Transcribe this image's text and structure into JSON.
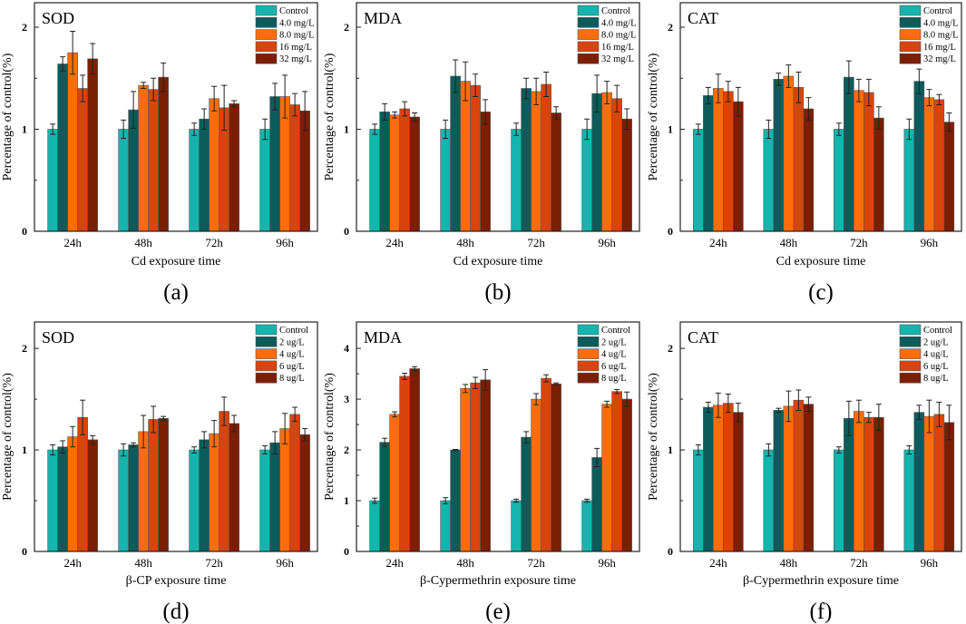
{
  "colors": [
    "#17b3ad",
    "#0b5c5a",
    "#ff6d0a",
    "#d8440b",
    "#7a1f02"
  ],
  "chart_data": [
    {
      "type": "bar",
      "panel_label": "(a)",
      "title": "SOD",
      "xlabel": "Cd exposure time",
      "ylabel": "Percentage of control(%)",
      "ylim": [
        0,
        2.24
      ],
      "yticks": [
        0,
        1,
        2
      ],
      "categories": [
        "24h",
        "48h",
        "72h",
        "96h"
      ],
      "legend_position": "top-right",
      "series": [
        {
          "name": "Control",
          "values": [
            1,
            1,
            1,
            1
          ],
          "errors": [
            0.05,
            0.09,
            0.06,
            0.1
          ]
        },
        {
          "name": "4.0 mg/L",
          "values": [
            1.64,
            1.19,
            1.1,
            1.32
          ],
          "errors": [
            0.07,
            0.18,
            0.1,
            0.13
          ]
        },
        {
          "name": "8.0 mg/L",
          "values": [
            1.75,
            1.43,
            1.3,
            1.32
          ],
          "errors": [
            0.21,
            0.03,
            0.12,
            0.21
          ]
        },
        {
          "name": "16  mg/L",
          "values": [
            1.4,
            1.39,
            1.21,
            1.24
          ],
          "errors": [
            0.13,
            0.11,
            0.22,
            0.11
          ]
        },
        {
          "name": "32  mg/L",
          "values": [
            1.69,
            1.51,
            1.25,
            1.18
          ],
          "errors": [
            0.15,
            0.14,
            0.03,
            0.19
          ]
        }
      ]
    },
    {
      "type": "bar",
      "panel_label": "(b)",
      "title": "MDA",
      "xlabel": "Cd exposure time",
      "ylabel": "Percentage of control(%)",
      "ylim": [
        0,
        2.24
      ],
      "yticks": [
        0,
        1,
        2
      ],
      "categories": [
        "24h",
        "48h",
        "72h",
        "96h"
      ],
      "legend_position": "top-right",
      "series": [
        {
          "name": "Control",
          "values": [
            1,
            1,
            1,
            1
          ],
          "errors": [
            0.05,
            0.09,
            0.06,
            0.1
          ]
        },
        {
          "name": "4.0 mg/L",
          "values": [
            1.17,
            1.52,
            1.4,
            1.35
          ],
          "errors": [
            0.08,
            0.16,
            0.1,
            0.18
          ]
        },
        {
          "name": "8.0 mg/L",
          "values": [
            1.14,
            1.47,
            1.37,
            1.36
          ],
          "errors": [
            0.03,
            0.19,
            0.13,
            0.11
          ]
        },
        {
          "name": "16  mg/L",
          "values": [
            1.2,
            1.43,
            1.44,
            1.3
          ],
          "errors": [
            0.07,
            0.11,
            0.12,
            0.13
          ]
        },
        {
          "name": "32  mg/L",
          "values": [
            1.12,
            1.17,
            1.16,
            1.1
          ],
          "errors": [
            0.04,
            0.12,
            0.06,
            0.1
          ]
        }
      ]
    },
    {
      "type": "bar",
      "panel_label": "(c)",
      "title": "CAT",
      "xlabel": "Cd exposure time",
      "ylabel": "Percentage of control(%)",
      "ylim": [
        0,
        2.24
      ],
      "yticks": [
        0,
        1,
        2
      ],
      "categories": [
        "24h",
        "48h",
        "72h",
        "96h"
      ],
      "legend_position": "top-right",
      "series": [
        {
          "name": "Control",
          "values": [
            1,
            1,
            1,
            1
          ],
          "errors": [
            0.05,
            0.09,
            0.06,
            0.1
          ]
        },
        {
          "name": "4.0 mg/L",
          "values": [
            1.33,
            1.49,
            1.51,
            1.47
          ],
          "errors": [
            0.08,
            0.06,
            0.16,
            0.12
          ]
        },
        {
          "name": "8.0 mg/L",
          "values": [
            1.4,
            1.52,
            1.38,
            1.31
          ],
          "errors": [
            0.14,
            0.11,
            0.11,
            0.08
          ]
        },
        {
          "name": "16  mg/L",
          "values": [
            1.37,
            1.41,
            1.36,
            1.29
          ],
          "errors": [
            0.1,
            0.15,
            0.13,
            0.05
          ]
        },
        {
          "name": "32  mg/L",
          "values": [
            1.27,
            1.2,
            1.11,
            1.07
          ],
          "errors": [
            0.14,
            0.11,
            0.11,
            0.09
          ]
        }
      ]
    },
    {
      "type": "bar",
      "panel_label": "(d)",
      "title": "SOD",
      "xlabel": "β-CP exposure time",
      "ylabel": "Percentage of control(%)",
      "ylim": [
        0,
        2.26
      ],
      "yticks": [
        0,
        1,
        2
      ],
      "categories": [
        "24h",
        "48h",
        "72h",
        "96h"
      ],
      "legend_position": "top-right",
      "series": [
        {
          "name": "Control",
          "values": [
            1,
            1,
            1,
            1
          ],
          "errors": [
            0.05,
            0.06,
            0.03,
            0.04
          ]
        },
        {
          "name": "2 ug/L",
          "values": [
            1.03,
            1.05,
            1.1,
            1.07
          ],
          "errors": [
            0.06,
            0.02,
            0.08,
            0.11
          ]
        },
        {
          "name": "4 ug/L",
          "values": [
            1.13,
            1.18,
            1.16,
            1.21
          ],
          "errors": [
            0.1,
            0.16,
            0.13,
            0.15
          ]
        },
        {
          "name": "6 ug/L",
          "values": [
            1.32,
            1.3,
            1.38,
            1.35
          ],
          "errors": [
            0.17,
            0.13,
            0.14,
            0.07
          ]
        },
        {
          "name": "8 ug/L",
          "values": [
            1.1,
            1.31,
            1.26,
            1.15
          ],
          "errors": [
            0.04,
            0.02,
            0.08,
            0.06
          ]
        }
      ]
    },
    {
      "type": "bar",
      "panel_label": "(e)",
      "title": "MDA",
      "xlabel": "β-Cypermethrin exposure time",
      "ylabel": "Percentage of control(%)",
      "ylim": [
        0,
        4.52
      ],
      "yticks": [
        0,
        1,
        2,
        3,
        4
      ],
      "categories": [
        "24h",
        "48h",
        "72h",
        "96h"
      ],
      "legend_position": "top-right",
      "series": [
        {
          "name": "Control",
          "values": [
            1,
            1,
            1,
            1
          ],
          "errors": [
            0.05,
            0.06,
            0.03,
            0.03
          ]
        },
        {
          "name": "2 ug/L",
          "values": [
            2.15,
            2.0,
            2.25,
            1.85
          ],
          "errors": [
            0.08,
            0.01,
            0.11,
            0.18
          ]
        },
        {
          "name": "4 ug/L",
          "values": [
            2.7,
            3.21,
            3.0,
            2.9
          ],
          "errors": [
            0.05,
            0.08,
            0.11,
            0.06
          ]
        },
        {
          "name": "6 ug/L",
          "values": [
            3.45,
            3.32,
            3.41,
            3.15
          ],
          "errors": [
            0.06,
            0.11,
            0.07,
            0.04
          ]
        },
        {
          "name": "8 ug/L",
          "values": [
            3.6,
            3.38,
            3.3,
            3.0
          ],
          "errors": [
            0.04,
            0.2,
            0.02,
            0.14
          ]
        }
      ]
    },
    {
      "type": "bar",
      "panel_label": "(f)",
      "title": "CAT",
      "xlabel": "β-Cypermethrin exposure time",
      "ylabel": "Percentage of control(%)",
      "ylim": [
        0,
        2.26
      ],
      "yticks": [
        0,
        1,
        2
      ],
      "categories": [
        "24h",
        "48h",
        "72h",
        "96h"
      ],
      "legend_position": "top-right",
      "series": [
        {
          "name": "Control",
          "values": [
            1,
            1,
            1,
            1
          ],
          "errors": [
            0.05,
            0.06,
            0.03,
            0.04
          ]
        },
        {
          "name": "2 ug/L",
          "values": [
            1.42,
            1.39,
            1.31,
            1.37
          ],
          "errors": [
            0.05,
            0.02,
            0.17,
            0.07
          ]
        },
        {
          "name": "4 ug/L",
          "values": [
            1.44,
            1.43,
            1.38,
            1.33
          ],
          "errors": [
            0.12,
            0.15,
            0.11,
            0.16
          ]
        },
        {
          "name": "6 ug/L",
          "values": [
            1.46,
            1.49,
            1.32,
            1.35
          ],
          "errors": [
            0.09,
            0.1,
            0.05,
            0.12
          ]
        },
        {
          "name": "8 ug/L",
          "values": [
            1.37,
            1.45,
            1.32,
            1.27
          ],
          "errors": [
            0.09,
            0.07,
            0.13,
            0.17
          ]
        }
      ]
    }
  ]
}
